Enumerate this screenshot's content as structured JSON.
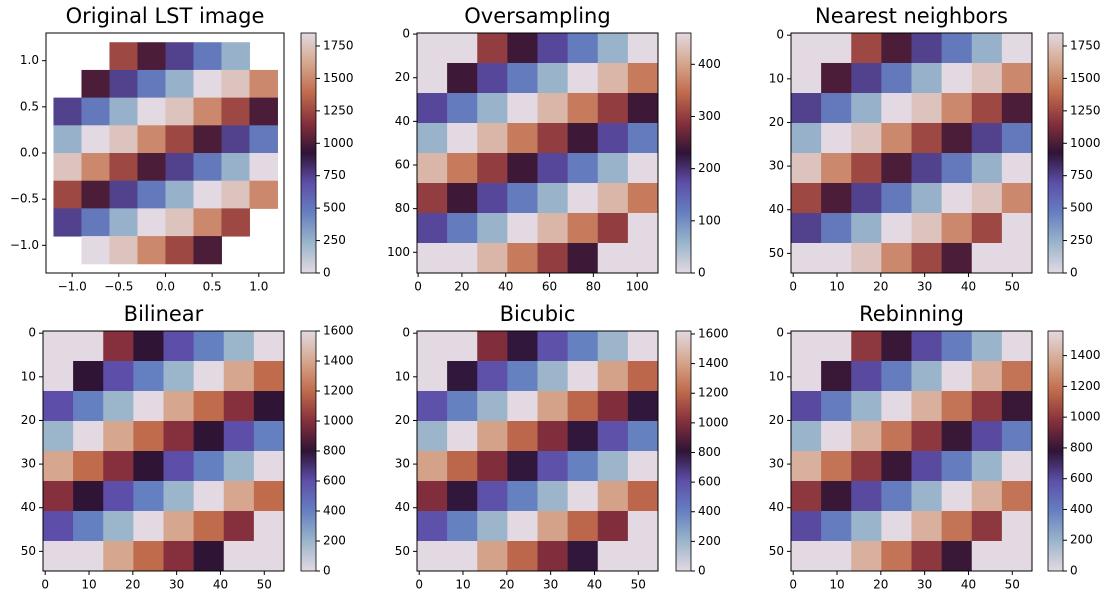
{
  "chart_data": [
    {
      "type": "image",
      "title": "Original LST image",
      "xlim": [
        -1.28,
        1.27
      ],
      "ylim": [
        -1.3,
        1.3
      ],
      "extent": [
        -1.2,
        1.2,
        -1.2,
        1.2
      ],
      "xticks": [
        {
          "value": -1,
          "label": "−1.0"
        },
        {
          "value": -0.5,
          "label": "−0.5"
        },
        {
          "value": 0,
          "label": "0.0"
        },
        0.5,
        {
          "value": 1,
          "label": "1.0"
        }
      ],
      "yticks": [
        {
          "value": -1,
          "label": "−1.0"
        },
        {
          "value": -0.5,
          "label": "−0.5"
        },
        {
          "value": 0,
          "label": "0.0"
        },
        0.5,
        {
          "value": 1,
          "label": "1.0"
        }
      ],
      "clim": [
        0,
        1850
      ],
      "cbar_ticks": [
        0,
        250,
        500,
        750,
        1000,
        1250,
        1500,
        1750
      ],
      "colormap": [
        "#e2d9e2",
        "#9bb5cb",
        "#6580c0",
        "#5d4fa9",
        "#2f1436",
        "#85303c",
        "#c06b4c",
        "#d6a78e",
        "#e2d9e2"
      ],
      "values": [
        [
          null,
          null,
          1250,
          1000,
          750,
          500,
          250,
          null
        ],
        [
          null,
          1000,
          750,
          500,
          250,
          0,
          1750,
          1500
        ],
        [
          750,
          500,
          250,
          0,
          1750,
          1500,
          1250,
          1000
        ],
        [
          250,
          0,
          1750,
          1500,
          1250,
          1000,
          750,
          500
        ],
        [
          1750,
          1500,
          1250,
          1000,
          750,
          500,
          250,
          0
        ],
        [
          1250,
          1000,
          750,
          500,
          250,
          0,
          1750,
          1500
        ],
        [
          750,
          500,
          250,
          0,
          1750,
          1500,
          1250,
          null
        ],
        [
          null,
          0,
          1750,
          1500,
          1250,
          1000,
          null,
          null
        ]
      ]
    },
    {
      "type": "image",
      "title": "Oversampling",
      "xlim": [
        -0.5,
        109.5
      ],
      "ylim": [
        109.5,
        -0.5
      ],
      "extent": [
        -0.5,
        109.5,
        109.5,
        -0.5
      ],
      "xticks": [
        0,
        20,
        40,
        60,
        80,
        100
      ],
      "yticks": [
        0,
        20,
        40,
        60,
        80,
        100
      ],
      "clim": [
        0,
        460
      ],
      "cbar_ticks": [
        0,
        100,
        200,
        300,
        400
      ],
      "colormap": [
        "#e2d9e2",
        "#9bb5cb",
        "#6580c0",
        "#5d4fa9",
        "#2f1436",
        "#85303c",
        "#c06b4c",
        "#d6a78e",
        "#e2d9e2"
      ],
      "values": [
        [
          0,
          0,
          300,
          240,
          180,
          120,
          60,
          0
        ],
        [
          0,
          240,
          180,
          120,
          60,
          0,
          420,
          360
        ],
        [
          180,
          120,
          60,
          0,
          420,
          360,
          300,
          240
        ],
        [
          60,
          0,
          420,
          360,
          300,
          240,
          180,
          120
        ],
        [
          420,
          360,
          300,
          240,
          180,
          120,
          60,
          0
        ],
        [
          300,
          240,
          180,
          120,
          60,
          0,
          420,
          360
        ],
        [
          180,
          120,
          60,
          0,
          420,
          360,
          300,
          0
        ],
        [
          0,
          0,
          420,
          360,
          300,
          240,
          0,
          0
        ]
      ]
    },
    {
      "type": "image",
      "title": "Nearest neighbors",
      "xlim": [
        -0.5,
        54.5
      ],
      "ylim": [
        54.5,
        -0.5
      ],
      "extent": [
        -0.5,
        54.5,
        54.5,
        -0.5
      ],
      "xticks": [
        0,
        10,
        20,
        30,
        40,
        50
      ],
      "yticks": [
        0,
        10,
        20,
        30,
        40,
        50
      ],
      "clim": [
        0,
        1850
      ],
      "cbar_ticks": [
        0,
        250,
        500,
        750,
        1000,
        1250,
        1500,
        1750
      ],
      "colormap": [
        "#e2d9e2",
        "#9bb5cb",
        "#6580c0",
        "#5d4fa9",
        "#2f1436",
        "#85303c",
        "#c06b4c",
        "#d6a78e",
        "#e2d9e2"
      ],
      "values": [
        [
          0,
          0,
          1250,
          1000,
          750,
          500,
          250,
          0
        ],
        [
          0,
          1000,
          750,
          500,
          250,
          0,
          1750,
          1500
        ],
        [
          750,
          500,
          250,
          0,
          1750,
          1500,
          1250,
          1000
        ],
        [
          250,
          0,
          1750,
          1500,
          1250,
          1000,
          750,
          500
        ],
        [
          1750,
          1500,
          1250,
          1000,
          750,
          500,
          250,
          0
        ],
        [
          1250,
          1000,
          750,
          500,
          250,
          0,
          1750,
          1500
        ],
        [
          750,
          500,
          250,
          0,
          1750,
          1500,
          1250,
          0
        ],
        [
          0,
          0,
          1750,
          1500,
          1250,
          1000,
          0,
          0
        ]
      ]
    },
    {
      "type": "image",
      "title": "Bilinear",
      "xlim": [
        -0.5,
        54.5
      ],
      "ylim": [
        54.5,
        -0.5
      ],
      "extent": [
        -0.5,
        54.5,
        54.5,
        -0.5
      ],
      "xticks": [
        0,
        10,
        20,
        30,
        40,
        50
      ],
      "yticks": [
        0,
        10,
        20,
        30,
        40,
        50
      ],
      "clim": [
        0,
        1600
      ],
      "cbar_ticks": [
        0,
        200,
        400,
        600,
        800,
        1000,
        1200,
        1400,
        1600
      ],
      "colormap": [
        "#e2d9e2",
        "#9bb5cb",
        "#6580c0",
        "#5d4fa9",
        "#2f1436",
        "#85303c",
        "#c06b4c",
        "#d6a78e",
        "#e2d9e2"
      ],
      "values": [
        [
          0,
          0,
          1000,
          800,
          600,
          400,
          200,
          0
        ],
        [
          0,
          800,
          600,
          400,
          200,
          0,
          1400,
          1200
        ],
        [
          600,
          400,
          200,
          0,
          1400,
          1200,
          1000,
          800
        ],
        [
          200,
          0,
          1400,
          1200,
          1000,
          800,
          600,
          400
        ],
        [
          1400,
          1200,
          1000,
          800,
          600,
          400,
          200,
          0
        ],
        [
          1000,
          800,
          600,
          400,
          200,
          0,
          1400,
          1200
        ],
        [
          600,
          400,
          200,
          0,
          1400,
          1200,
          1000,
          0
        ],
        [
          0,
          0,
          1400,
          1200,
          1000,
          800,
          0,
          0
        ]
      ]
    },
    {
      "type": "image",
      "title": "Bicubic",
      "xlim": [
        -0.5,
        54.5
      ],
      "ylim": [
        54.5,
        -0.5
      ],
      "extent": [
        -0.5,
        54.5,
        54.5,
        -0.5
      ],
      "xticks": [
        0,
        10,
        20,
        30,
        40,
        50
      ],
      "yticks": [
        0,
        10,
        20,
        30,
        40,
        50
      ],
      "clim": [
        0,
        1620
      ],
      "cbar_ticks": [
        0,
        200,
        400,
        600,
        800,
        1000,
        1200,
        1400,
        1600
      ],
      "colormap": [
        "#e2d9e2",
        "#9bb5cb",
        "#6580c0",
        "#5d4fa9",
        "#2f1436",
        "#85303c",
        "#c06b4c",
        "#d6a78e",
        "#e2d9e2"
      ],
      "values": [
        [
          0,
          0,
          1000,
          800,
          600,
          400,
          200,
          0
        ],
        [
          0,
          800,
          600,
          400,
          200,
          0,
          1400,
          1200
        ],
        [
          600,
          400,
          200,
          0,
          1400,
          1200,
          1000,
          800
        ],
        [
          200,
          0,
          1400,
          1200,
          1000,
          800,
          600,
          400
        ],
        [
          1400,
          1200,
          1000,
          800,
          600,
          400,
          200,
          0
        ],
        [
          1000,
          800,
          600,
          400,
          200,
          0,
          1400,
          1200
        ],
        [
          600,
          400,
          200,
          0,
          1400,
          1200,
          1000,
          0
        ],
        [
          0,
          0,
          1400,
          1200,
          1000,
          800,
          0,
          0
        ]
      ]
    },
    {
      "type": "image",
      "title": "Rebinning",
      "xlim": [
        -0.5,
        54.5
      ],
      "ylim": [
        54.5,
        -0.5
      ],
      "extent": [
        -0.5,
        54.5,
        54.5,
        -0.5
      ],
      "xticks": [
        0,
        10,
        20,
        30,
        40,
        50
      ],
      "yticks": [
        0,
        10,
        20,
        30,
        40,
        50
      ],
      "clim": [
        0,
        1560
      ],
      "cbar_ticks": [
        0,
        200,
        400,
        600,
        800,
        1000,
        1200,
        1400
      ],
      "colormap": [
        "#e2d9e2",
        "#9bb5cb",
        "#6580c0",
        "#5d4fa9",
        "#2f1436",
        "#85303c",
        "#c06b4c",
        "#d6a78e",
        "#e2d9e2"
      ],
      "values": [
        [
          0,
          0,
          1000,
          800,
          600,
          400,
          200,
          0
        ],
        [
          0,
          800,
          600,
          400,
          200,
          0,
          1400,
          1200
        ],
        [
          600,
          400,
          200,
          0,
          1400,
          1200,
          1000,
          800
        ],
        [
          200,
          0,
          1400,
          1200,
          1000,
          800,
          600,
          400
        ],
        [
          1400,
          1200,
          1000,
          800,
          600,
          400,
          200,
          0
        ],
        [
          1000,
          800,
          600,
          400,
          200,
          0,
          1400,
          1200
        ],
        [
          600,
          400,
          200,
          0,
          1400,
          1200,
          1000,
          0
        ],
        [
          0,
          0,
          1400,
          1200,
          1000,
          800,
          0,
          0
        ]
      ]
    }
  ]
}
